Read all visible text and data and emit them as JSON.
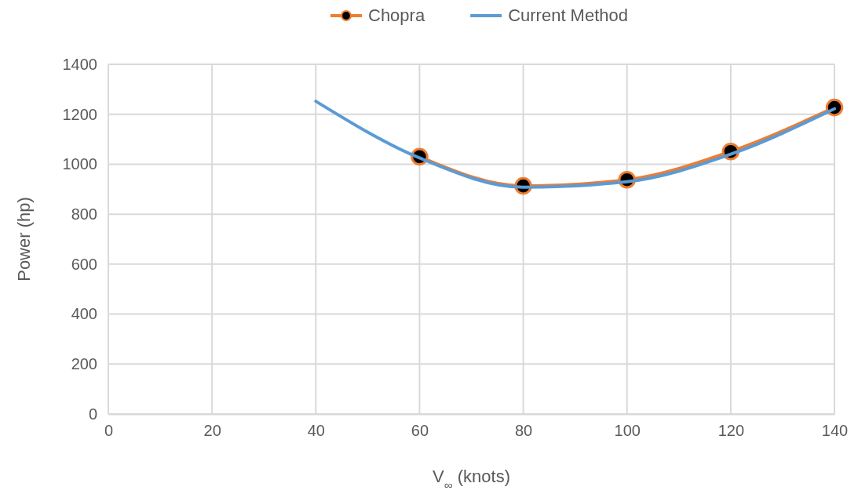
{
  "chart_data": {
    "type": "line",
    "xlabel": "V$_{∞}$ (knots)",
    "ylabel": "Power (hp)",
    "xlim": [
      0,
      140
    ],
    "xticks": [
      0,
      20,
      40,
      60,
      80,
      100,
      120,
      140
    ],
    "ylim": [
      0,
      1400
    ],
    "yticks": [
      0,
      200,
      400,
      600,
      800,
      1000,
      1200,
      1400
    ],
    "grid": true,
    "legend": "top",
    "series": [
      {
        "name": "Chopra",
        "color": "#ed7d31",
        "marker": "circle",
        "x": [
          60,
          80,
          100,
          120,
          140
        ],
        "values": [
          1030,
          913,
          938,
          1051,
          1227
        ]
      },
      {
        "name": "Current Method",
        "color": "#5b9bd5",
        "marker": "none",
        "x": [
          40,
          60,
          80,
          100,
          120,
          140
        ],
        "values": [
          1252,
          1025,
          908,
          930,
          1040,
          1222
        ]
      }
    ]
  }
}
